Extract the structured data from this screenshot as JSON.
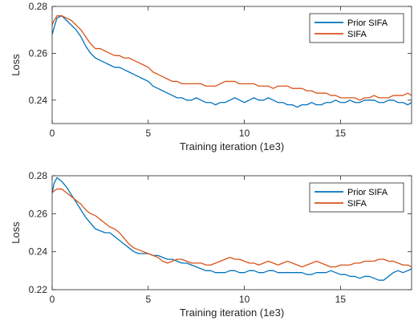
{
  "chart_data": [
    {
      "type": "line",
      "title": "",
      "xlabel": "Training iteration (1e3)",
      "ylabel": "Loss",
      "xlim": [
        0,
        18.7
      ],
      "ylim": [
        0.23,
        0.28
      ],
      "xticks": [
        0,
        5,
        10,
        15
      ],
      "xtick_labels": [
        "0",
        "5",
        "10",
        "15"
      ],
      "yticks": [
        0.24,
        0.26,
        0.28
      ],
      "ytick_labels": [
        "0.24",
        "0.26",
        "0.28"
      ],
      "grid": false,
      "legend_position": "top-right",
      "series": [
        {
          "name": "Prior SIFA",
          "color": "#0072BD",
          "x": [
            0,
            0.1,
            0.25,
            0.5,
            0.75,
            1.0,
            1.25,
            1.5,
            1.75,
            2.0,
            2.25,
            2.5,
            2.75,
            3.0,
            3.25,
            3.5,
            3.75,
            4.0,
            4.25,
            4.5,
            4.75,
            5.0,
            5.25,
            5.5,
            5.75,
            6.0,
            6.25,
            6.5,
            6.75,
            7.0,
            7.25,
            7.5,
            7.75,
            8.0,
            8.25,
            8.5,
            8.75,
            9.0,
            9.25,
            9.5,
            9.75,
            10.0,
            10.25,
            10.5,
            10.75,
            11.0,
            11.25,
            11.5,
            11.75,
            12.0,
            12.25,
            12.5,
            12.75,
            13.0,
            13.25,
            13.5,
            13.75,
            14.0,
            14.25,
            14.5,
            14.75,
            15.0,
            15.25,
            15.5,
            15.75,
            16.0,
            16.25,
            16.5,
            16.75,
            17.0,
            17.25,
            17.5,
            17.75,
            18.0,
            18.25,
            18.5,
            18.7
          ],
          "y": [
            0.268,
            0.271,
            0.275,
            0.276,
            0.274,
            0.272,
            0.27,
            0.267,
            0.263,
            0.26,
            0.258,
            0.257,
            0.256,
            0.255,
            0.254,
            0.254,
            0.253,
            0.252,
            0.251,
            0.25,
            0.249,
            0.248,
            0.246,
            0.245,
            0.244,
            0.243,
            0.242,
            0.241,
            0.241,
            0.24,
            0.24,
            0.241,
            0.24,
            0.239,
            0.239,
            0.238,
            0.239,
            0.239,
            0.24,
            0.241,
            0.24,
            0.239,
            0.24,
            0.241,
            0.24,
            0.24,
            0.241,
            0.24,
            0.239,
            0.239,
            0.238,
            0.238,
            0.237,
            0.238,
            0.238,
            0.239,
            0.238,
            0.238,
            0.239,
            0.239,
            0.24,
            0.239,
            0.239,
            0.24,
            0.239,
            0.239,
            0.24,
            0.24,
            0.24,
            0.239,
            0.239,
            0.24,
            0.24,
            0.239,
            0.239,
            0.238,
            0.239
          ]
        },
        {
          "name": "SIFA",
          "color": "#D95319",
          "x": [
            0,
            0.1,
            0.25,
            0.5,
            0.75,
            1.0,
            1.25,
            1.5,
            1.75,
            2.0,
            2.25,
            2.5,
            2.75,
            3.0,
            3.25,
            3.5,
            3.75,
            4.0,
            4.25,
            4.5,
            4.75,
            5.0,
            5.25,
            5.5,
            5.75,
            6.0,
            6.25,
            6.5,
            6.75,
            7.0,
            7.25,
            7.5,
            7.75,
            8.0,
            8.25,
            8.5,
            8.75,
            9.0,
            9.25,
            9.5,
            9.75,
            10.0,
            10.25,
            10.5,
            10.75,
            11.0,
            11.25,
            11.5,
            11.75,
            12.0,
            12.25,
            12.5,
            12.75,
            13.0,
            13.25,
            13.5,
            13.75,
            14.0,
            14.25,
            14.5,
            14.75,
            15.0,
            15.25,
            15.5,
            15.75,
            16.0,
            16.25,
            16.5,
            16.75,
            17.0,
            17.25,
            17.5,
            17.75,
            18.0,
            18.25,
            18.5,
            18.7
          ],
          "y": [
            0.272,
            0.274,
            0.276,
            0.276,
            0.275,
            0.274,
            0.272,
            0.27,
            0.267,
            0.264,
            0.262,
            0.262,
            0.261,
            0.26,
            0.259,
            0.259,
            0.258,
            0.258,
            0.257,
            0.256,
            0.255,
            0.254,
            0.252,
            0.251,
            0.25,
            0.249,
            0.248,
            0.248,
            0.247,
            0.247,
            0.247,
            0.247,
            0.247,
            0.246,
            0.246,
            0.246,
            0.247,
            0.248,
            0.248,
            0.248,
            0.247,
            0.247,
            0.247,
            0.247,
            0.246,
            0.246,
            0.246,
            0.245,
            0.246,
            0.246,
            0.246,
            0.245,
            0.245,
            0.245,
            0.244,
            0.244,
            0.243,
            0.243,
            0.243,
            0.242,
            0.242,
            0.241,
            0.241,
            0.241,
            0.241,
            0.24,
            0.241,
            0.241,
            0.242,
            0.241,
            0.241,
            0.241,
            0.242,
            0.242,
            0.242,
            0.243,
            0.242
          ]
        }
      ]
    },
    {
      "type": "line",
      "title": "",
      "xlabel": "Training iteration (1e3)",
      "ylabel": "Loss",
      "xlim": [
        0,
        18.7
      ],
      "ylim": [
        0.22,
        0.28
      ],
      "xticks": [
        0,
        5,
        10,
        15
      ],
      "xtick_labels": [
        "0",
        "5",
        "10",
        "15"
      ],
      "yticks": [
        0.22,
        0.24,
        0.26,
        0.28
      ],
      "ytick_labels": [
        "0.22",
        "0.24",
        "0.26",
        "0.28"
      ],
      "grid": false,
      "legend_position": "top-right",
      "series": [
        {
          "name": "Prior SIFA",
          "color": "#0072BD",
          "x": [
            0,
            0.1,
            0.25,
            0.5,
            0.75,
            1.0,
            1.25,
            1.5,
            1.75,
            2.0,
            2.25,
            2.5,
            2.75,
            3.0,
            3.25,
            3.5,
            3.75,
            4.0,
            4.25,
            4.5,
            4.75,
            5.0,
            5.25,
            5.5,
            5.75,
            6.0,
            6.25,
            6.5,
            6.75,
            7.0,
            7.25,
            7.5,
            7.75,
            8.0,
            8.25,
            8.5,
            8.75,
            9.0,
            9.25,
            9.5,
            9.75,
            10.0,
            10.25,
            10.5,
            10.75,
            11.0,
            11.25,
            11.5,
            11.75,
            12.0,
            12.25,
            12.5,
            12.75,
            13.0,
            13.25,
            13.5,
            13.75,
            14.0,
            14.25,
            14.5,
            14.75,
            15.0,
            15.25,
            15.5,
            15.75,
            16.0,
            16.25,
            16.5,
            16.75,
            17.0,
            17.25,
            17.5,
            17.75,
            18.0,
            18.25,
            18.5,
            18.7
          ],
          "y": [
            0.271,
            0.276,
            0.279,
            0.277,
            0.274,
            0.27,
            0.266,
            0.262,
            0.258,
            0.255,
            0.252,
            0.251,
            0.25,
            0.25,
            0.248,
            0.246,
            0.244,
            0.242,
            0.24,
            0.239,
            0.239,
            0.239,
            0.238,
            0.238,
            0.237,
            0.236,
            0.236,
            0.235,
            0.234,
            0.234,
            0.233,
            0.232,
            0.231,
            0.23,
            0.23,
            0.229,
            0.229,
            0.229,
            0.23,
            0.23,
            0.229,
            0.229,
            0.23,
            0.23,
            0.229,
            0.229,
            0.23,
            0.23,
            0.229,
            0.229,
            0.229,
            0.229,
            0.229,
            0.229,
            0.228,
            0.228,
            0.229,
            0.229,
            0.229,
            0.23,
            0.229,
            0.228,
            0.228,
            0.227,
            0.227,
            0.226,
            0.227,
            0.227,
            0.226,
            0.225,
            0.225,
            0.227,
            0.229,
            0.23,
            0.229,
            0.23,
            0.231
          ]
        },
        {
          "name": "SIFA",
          "color": "#D95319",
          "x": [
            0,
            0.1,
            0.25,
            0.5,
            0.75,
            1.0,
            1.25,
            1.5,
            1.75,
            2.0,
            2.25,
            2.5,
            2.75,
            3.0,
            3.25,
            3.5,
            3.75,
            4.0,
            4.25,
            4.5,
            4.75,
            5.0,
            5.25,
            5.5,
            5.75,
            6.0,
            6.25,
            6.5,
            6.75,
            7.0,
            7.25,
            7.5,
            7.75,
            8.0,
            8.25,
            8.5,
            8.75,
            9.0,
            9.25,
            9.5,
            9.75,
            10.0,
            10.25,
            10.5,
            10.75,
            11.0,
            11.25,
            11.5,
            11.75,
            12.0,
            12.25,
            12.5,
            12.75,
            13.0,
            13.25,
            13.5,
            13.75,
            14.0,
            14.25,
            14.5,
            14.75,
            15.0,
            15.25,
            15.5,
            15.75,
            16.0,
            16.25,
            16.5,
            16.75,
            17.0,
            17.25,
            17.5,
            17.75,
            18.0,
            18.25,
            18.5,
            18.7
          ],
          "y": [
            0.271,
            0.272,
            0.273,
            0.273,
            0.271,
            0.269,
            0.267,
            0.265,
            0.262,
            0.26,
            0.259,
            0.257,
            0.255,
            0.253,
            0.252,
            0.25,
            0.247,
            0.244,
            0.242,
            0.241,
            0.24,
            0.239,
            0.238,
            0.237,
            0.235,
            0.234,
            0.235,
            0.236,
            0.236,
            0.235,
            0.234,
            0.234,
            0.234,
            0.233,
            0.233,
            0.234,
            0.235,
            0.236,
            0.237,
            0.236,
            0.236,
            0.235,
            0.234,
            0.234,
            0.233,
            0.234,
            0.235,
            0.234,
            0.233,
            0.234,
            0.235,
            0.234,
            0.233,
            0.232,
            0.233,
            0.234,
            0.235,
            0.234,
            0.233,
            0.232,
            0.232,
            0.233,
            0.233,
            0.233,
            0.234,
            0.234,
            0.235,
            0.235,
            0.235,
            0.236,
            0.236,
            0.235,
            0.235,
            0.234,
            0.233,
            0.233,
            0.232
          ]
        }
      ]
    }
  ]
}
